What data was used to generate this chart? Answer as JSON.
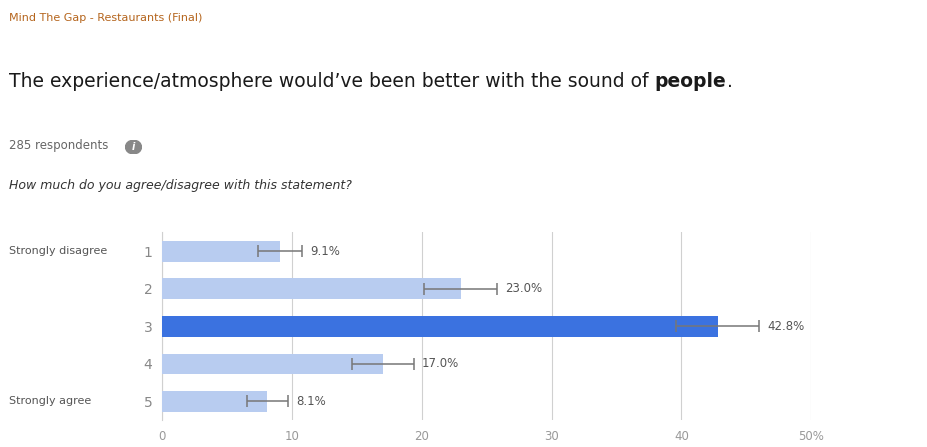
{
  "supertitle": "Mind The Gap - Restaurants (Final)",
  "title_normal": "The experience/atmosphere would’ve been better with the sound of ",
  "title_bold": "people",
  "title_end": ".",
  "respondents": "285 respondents",
  "question": "How much do you agree/disagree with this statement?",
  "categories": [
    "1",
    "2",
    "3",
    "4",
    "5"
  ],
  "values": [
    9.1,
    23.0,
    42.8,
    17.0,
    8.1
  ],
  "errors": [
    1.7,
    2.8,
    3.2,
    2.4,
    1.6
  ],
  "labels": [
    "9.1%",
    "23.0%",
    "42.8%",
    "17.0%",
    "8.1%"
  ],
  "bar_colors": [
    "#b8ccf0",
    "#b8ccf0",
    "#3b72e0",
    "#b8ccf0",
    "#b8ccf0"
  ],
  "ylabel_top": "Strongly disagree",
  "ylabel_bottom": "Strongly agree",
  "xlim": [
    0,
    50
  ],
  "xticks": [
    0,
    10,
    20,
    30,
    40,
    50
  ],
  "xticklabels": [
    "0",
    "10",
    "20",
    "30",
    "40",
    "50%"
  ],
  "supertitle_color": "#b5651d",
  "title_color": "#1a1a1a",
  "question_color": "#333333",
  "respondents_color": "#666666",
  "label_color": "#555555",
  "axis_label_color": "#555555",
  "grid_color": "#d0d0d0",
  "background_color": "#ffffff",
  "ytick_color": "#888888",
  "xtick_color": "#999999"
}
